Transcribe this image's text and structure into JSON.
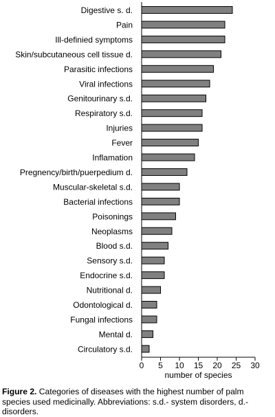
{
  "chart_data": {
    "type": "bar",
    "orientation": "horizontal",
    "categories": [
      "Digestive s. d.",
      "Pain",
      "Ill-definied symptoms",
      "Skin/subcutaneous cell tissue d.",
      "Parasitic infections",
      "Viral infections",
      "Genitourinary s.d.",
      "Respiratory s.d.",
      "Injuries",
      "Fever",
      "Inflamation",
      "Pregnency/birth/puerpedium d.",
      "Muscular-skeletal s.d.",
      "Bacterial infections",
      "Poisonings",
      "Neoplasms",
      "Blood s.d.",
      "Sensory s.d.",
      "Endocrine s.d.",
      "Nutritional d.",
      "Odontological d.",
      "Fungal infections",
      "Mental d.",
      "Circulatory s.d."
    ],
    "values": [
      24,
      22,
      22,
      21,
      19,
      18,
      17,
      16,
      16,
      15,
      14,
      12,
      10,
      10,
      9,
      8,
      7,
      6,
      6,
      5,
      4,
      4,
      3,
      2
    ],
    "xlabel": "number of species",
    "ylabel": "",
    "xlim": [
      0,
      30
    ],
    "xticks": [
      0,
      5,
      10,
      15,
      20,
      25,
      30
    ],
    "grid": false,
    "bar_color": "#808080",
    "bar_edge_color": "#000000"
  },
  "caption": {
    "label": "Figure 2.",
    "text": " Categories of diseases with the highest number of palm species used medicinally. Abbreviations: s.d.- system disorders, d.- disorders."
  }
}
